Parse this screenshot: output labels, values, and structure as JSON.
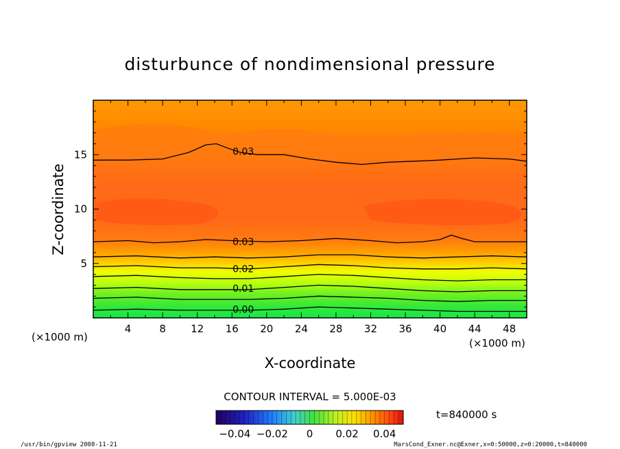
{
  "chart_data": {
    "type": "heatmap",
    "title": "disturbunce of nondimensional pressure",
    "xlabel": "X-coordinate",
    "ylabel": "Z-coordinate",
    "x_units_left": "(×1000 m)",
    "x_units_right": "(×1000 m)",
    "xlim": [
      0,
      50
    ],
    "ylim": [
      0,
      20
    ],
    "x_ticks": [
      4,
      8,
      12,
      16,
      20,
      24,
      28,
      32,
      36,
      40,
      44,
      48
    ],
    "y_ticks": [
      5,
      10,
      15
    ],
    "contour_interval_text": "CONTOUR INTERVAL = 5.000E-03",
    "time_text": "t=840000 s",
    "colorbar": {
      "range": [
        -0.05,
        0.05
      ],
      "ticks": [
        -0.04,
        -0.02,
        0,
        0.02,
        0.04
      ],
      "tick_labels": [
        "−0.04",
        "−0.02",
        "0",
        "0.02",
        "0.04"
      ]
    },
    "contour_labels": [
      {
        "text": "0.03",
        "x": 17.3,
        "z": 15.3
      },
      {
        "text": "0.03",
        "x": 17.3,
        "z": 7.0
      },
      {
        "text": "0.02",
        "x": 17.3,
        "z": 4.5
      },
      {
        "text": "0.01",
        "x": 17.3,
        "z": 2.7
      },
      {
        "text": "0.00",
        "x": 17.3,
        "z": 0.8
      }
    ],
    "contours": [
      {
        "level": 0.03,
        "points": [
          [
            0,
            14.5
          ],
          [
            4,
            14.5
          ],
          [
            8,
            14.6
          ],
          [
            11,
            15.2
          ],
          [
            13,
            15.9
          ],
          [
            14.2,
            16.0
          ],
          [
            15.5,
            15.6
          ],
          [
            17,
            15.2
          ],
          [
            19,
            15.0
          ],
          [
            22,
            15.0
          ],
          [
            25,
            14.6
          ],
          [
            28,
            14.3
          ],
          [
            31,
            14.1
          ],
          [
            34,
            14.3
          ],
          [
            37,
            14.4
          ],
          [
            40,
            14.5
          ],
          [
            44,
            14.7
          ],
          [
            48,
            14.6
          ],
          [
            50,
            14.4
          ]
        ]
      },
      {
        "level": 0.03,
        "points": [
          [
            0,
            7.0
          ],
          [
            4,
            7.1
          ],
          [
            7,
            6.9
          ],
          [
            10,
            7.0
          ],
          [
            13,
            7.2
          ],
          [
            16,
            7.1
          ],
          [
            20,
            7.0
          ],
          [
            24,
            7.1
          ],
          [
            28,
            7.3
          ],
          [
            32,
            7.1
          ],
          [
            35,
            6.9
          ],
          [
            38,
            7.0
          ],
          [
            40,
            7.2
          ],
          [
            41.3,
            7.6
          ],
          [
            42.5,
            7.3
          ],
          [
            44,
            7.0
          ],
          [
            47,
            7.0
          ],
          [
            50,
            7.0
          ]
        ]
      },
      {
        "level": 0.025,
        "points": [
          [
            0,
            5.6
          ],
          [
            5,
            5.7
          ],
          [
            10,
            5.5
          ],
          [
            14,
            5.6
          ],
          [
            18,
            5.5
          ],
          [
            22,
            5.6
          ],
          [
            26,
            5.8
          ],
          [
            30,
            5.8
          ],
          [
            34,
            5.6
          ],
          [
            38,
            5.5
          ],
          [
            42,
            5.6
          ],
          [
            46,
            5.7
          ],
          [
            50,
            5.6
          ]
        ]
      },
      {
        "level": 0.02,
        "points": [
          [
            0,
            4.7
          ],
          [
            5,
            4.8
          ],
          [
            10,
            4.6
          ],
          [
            14,
            4.6
          ],
          [
            18,
            4.5
          ],
          [
            22,
            4.7
          ],
          [
            26,
            4.9
          ],
          [
            30,
            4.8
          ],
          [
            34,
            4.6
          ],
          [
            38,
            4.5
          ],
          [
            42,
            4.5
          ],
          [
            46,
            4.6
          ],
          [
            50,
            4.5
          ]
        ]
      },
      {
        "level": 0.015,
        "points": [
          [
            0,
            3.8
          ],
          [
            5,
            3.9
          ],
          [
            10,
            3.7
          ],
          [
            14,
            3.6
          ],
          [
            18,
            3.6
          ],
          [
            22,
            3.8
          ],
          [
            26,
            4.0
          ],
          [
            30,
            3.9
          ],
          [
            34,
            3.7
          ],
          [
            38,
            3.5
          ],
          [
            42,
            3.4
          ],
          [
            46,
            3.5
          ],
          [
            50,
            3.5
          ]
        ]
      },
      {
        "level": 0.01,
        "points": [
          [
            0,
            2.7
          ],
          [
            5,
            2.8
          ],
          [
            10,
            2.6
          ],
          [
            14,
            2.6
          ],
          [
            18,
            2.6
          ],
          [
            22,
            2.8
          ],
          [
            26,
            3.0
          ],
          [
            30,
            2.9
          ],
          [
            34,
            2.7
          ],
          [
            38,
            2.5
          ],
          [
            42,
            2.4
          ],
          [
            46,
            2.5
          ],
          [
            50,
            2.5
          ]
        ]
      },
      {
        "level": 0.005,
        "points": [
          [
            0,
            1.8
          ],
          [
            5,
            1.9
          ],
          [
            10,
            1.7
          ],
          [
            14,
            1.7
          ],
          [
            18,
            1.7
          ],
          [
            22,
            1.8
          ],
          [
            26,
            2.0
          ],
          [
            30,
            1.9
          ],
          [
            34,
            1.8
          ],
          [
            38,
            1.6
          ],
          [
            42,
            1.5
          ],
          [
            46,
            1.6
          ],
          [
            50,
            1.6
          ]
        ]
      },
      {
        "level": 0.0,
        "points": [
          [
            0,
            0.7
          ],
          [
            5,
            0.8
          ],
          [
            10,
            0.7
          ],
          [
            14,
            0.7
          ],
          [
            18,
            0.7
          ],
          [
            22,
            0.8
          ],
          [
            26,
            1.0
          ],
          [
            30,
            0.9
          ],
          [
            34,
            0.8
          ],
          [
            38,
            0.7
          ],
          [
            42,
            0.6
          ],
          [
            46,
            0.6
          ],
          [
            50,
            0.6
          ]
        ]
      }
    ]
  },
  "footer": {
    "left": "/usr/bin/gpview   2008-11-21",
    "right": "MarsCond_Exner.nc@Exner,x=0:50000,z=0:20000,t=840000"
  },
  "colors": {
    "top_orange": "#ff8c00",
    "mid_orange": "#ff6a14",
    "core_red": "#ff5a14",
    "yellow": "#e8ff00",
    "green": "#22ee44"
  }
}
